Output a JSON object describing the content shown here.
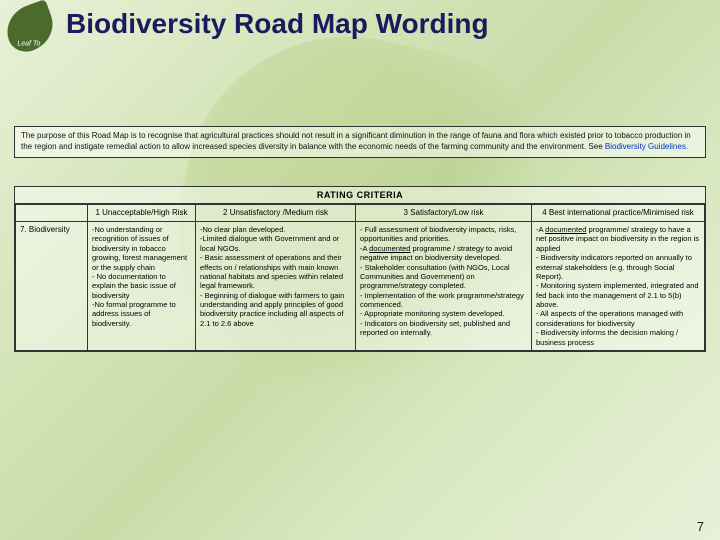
{
  "title": "Biodiversity Road Map Wording",
  "purpose": {
    "text": "The purpose of this Road Map is to recognise that agricultural practices should not result in a significant diminution in the range of fauna and flora which existed prior to tobacco production in the region and instigate remedial action to allow increased species diversity in balance with the economic needs of the farming community and the environment. See ",
    "link": "Biodiversity Guidelines."
  },
  "ratingHeader": "RATING CRITERIA",
  "columns": {
    "c1": "1 Unacceptable/High Risk",
    "c2": "2 Unsatisfactory /Medium risk",
    "c3": "3 Satisfactory/Low risk",
    "c4": "4 Best international practice/Minimised risk"
  },
  "rowLabel": "7. Biodiversity",
  "cells": {
    "c1": "-No understanding or recognition of issues of biodiversity in tobacco growing, forest management or the supply chain\n- No documentation to explain the basic issue of biodiversity\n-No formal programme to address issues of biodiversity.",
    "c2": "-No clear plan developed.\n-Limited dialogue with Government and or local NGOs.\n- Basic assessment of operations and their effects on / relationships with main known national habitats and species within related legal framework.\n- Beginning of dialogue with farmers to gain understanding and apply principles of good biodiversity practice including all aspects of 2.1 to 2.6 above",
    "c3a": "- Full assessment of biodiversity impacts, risks, opportunities and priorities.\n-A ",
    "c3u": "documented",
    "c3b": " programme / strategy to avoid negative impact on biodiversity developed.\n- Stakeholder consultation (with NGOs, Local Communities and Government) on programme/strategy completed.\n- Implementation of the work programme/strategy commenced.\n- Appropriate monitoring system developed.\n- Indicators on biodiversity set, published and reported on internally.",
    "c4a": "-A ",
    "c4u": "documented",
    "c4b": " programme/ strategy to have a net positive impact on biodiversity in the region is applied\n- Biodiversity indicators reported on annually to external stakeholders (e.g. through Social Report).\n- Monitoring system implemented, integrated and fed back into the management of 2.1 to 5(b) above.\n- All aspects of the operations managed with considerations for biodiversity\n- Biodiversity informs the decision making / business process"
  },
  "pageNumber": "7",
  "colors": {
    "titleColor": "#1a1a5c",
    "linkColor": "#0033cc",
    "borderColor": "#333333",
    "logoColor": "#4a6b2a"
  }
}
